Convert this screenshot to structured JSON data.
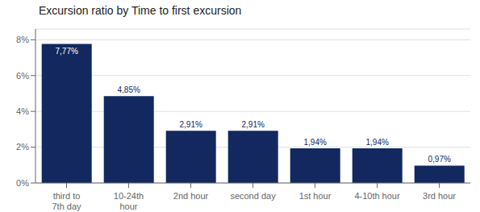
{
  "chart_data": {
    "type": "bar",
    "title": "Excursion ratio by Time to first excursion",
    "categories": [
      "third to 7th day",
      "10-24th hour",
      "2nd hour",
      "second day",
      "1st hour",
      "4-10th hour",
      "3rd hour"
    ],
    "values": [
      7.77,
      4.85,
      2.91,
      2.91,
      1.94,
      1.94,
      0.97
    ],
    "value_labels": [
      "7,77%",
      "4,85%",
      "2,91%",
      "2,91%",
      "1,94%",
      "1,94%",
      "0,97%"
    ],
    "color": "#12285e",
    "ylim": [
      0,
      8.6
    ],
    "yticks": [
      {
        "value": 0,
        "label": "0%"
      },
      {
        "value": 2,
        "label": "2%"
      },
      {
        "value": 4,
        "label": "4%"
      },
      {
        "value": 6,
        "label": "6%"
      },
      {
        "value": 8,
        "label": "8%"
      }
    ],
    "grid": true,
    "data_labels": true
  }
}
